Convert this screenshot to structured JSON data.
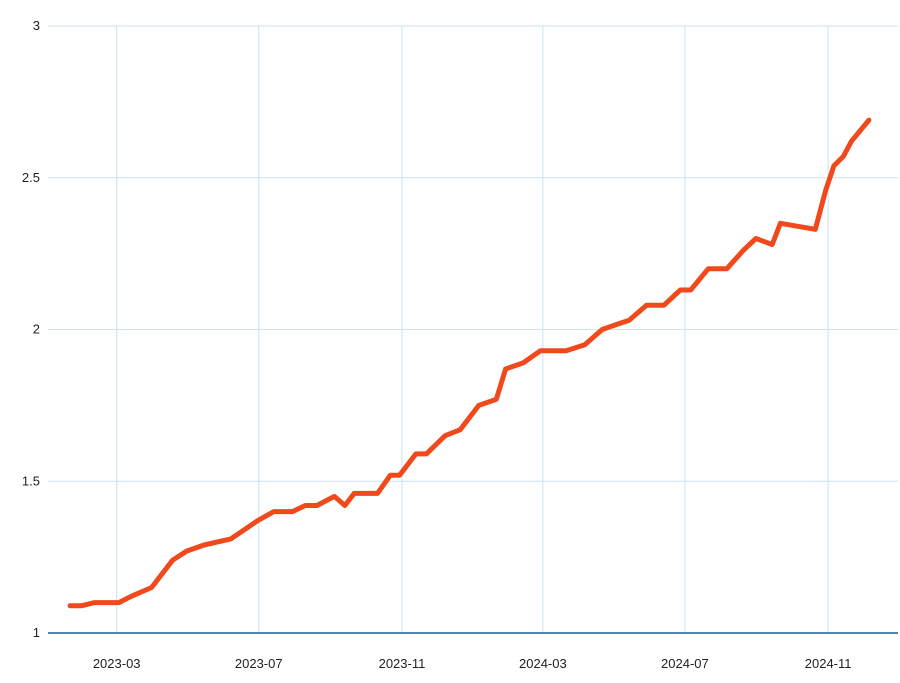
{
  "chart_data": {
    "type": "line",
    "title": "",
    "xlabel": "",
    "ylabel": "",
    "x_ticks": [
      "2023-03",
      "2023-07",
      "2023-11",
      "2024-03",
      "2024-07",
      "2024-11"
    ],
    "y_ticks": [
      "1",
      "1.5",
      "2",
      "2.5",
      "3"
    ],
    "ylim": [
      1,
      3
    ],
    "xlim": [
      "2023-01-01",
      "2024-12-31"
    ],
    "grid": true,
    "legend": "none",
    "colors": {
      "series": "#f04a1c",
      "grid": "#c9e3f2",
      "baseline": "#1f5b8c"
    },
    "series": [
      {
        "x": [
          "2023-01-20",
          "2023-01-30",
          "2023-02-10",
          "2023-02-20",
          "2023-03-03",
          "2023-03-13",
          "2023-03-31",
          "2023-04-18",
          "2023-04-30",
          "2023-05-15",
          "2023-06-07",
          "2023-06-30",
          "2023-07-14",
          "2023-07-30",
          "2023-08-10",
          "2023-08-20",
          "2023-09-04",
          "2023-09-13",
          "2023-09-21",
          "2023-10-11",
          "2023-10-22",
          "2023-10-30",
          "2023-11-13",
          "2023-11-22",
          "2023-12-08",
          "2023-12-21",
          "2024-01-06",
          "2024-01-21",
          "2024-01-29",
          "2024-02-13",
          "2024-02-28",
          "2024-03-08",
          "2024-03-21",
          "2024-04-06",
          "2024-04-21",
          "2024-05-06",
          "2024-05-14",
          "2024-05-29",
          "2024-06-13",
          "2024-06-27",
          "2024-07-06",
          "2024-07-21",
          "2024-07-30",
          "2024-08-06",
          "2024-08-20",
          "2024-08-31",
          "2024-09-14",
          "2024-09-21",
          "2024-10-21",
          "2024-10-30",
          "2024-11-06",
          "2024-11-14",
          "2024-11-21",
          "2024-12-06"
        ],
        "values": [
          1.09,
          1.09,
          1.1,
          1.1,
          1.1,
          1.12,
          1.15,
          1.24,
          1.27,
          1.29,
          1.31,
          1.37,
          1.4,
          1.4,
          1.42,
          1.42,
          1.45,
          1.42,
          1.46,
          1.46,
          1.52,
          1.52,
          1.59,
          1.59,
          1.65,
          1.67,
          1.75,
          1.77,
          1.87,
          1.89,
          1.93,
          1.93,
          1.93,
          1.95,
          2.0,
          2.02,
          2.03,
          2.08,
          2.08,
          2.13,
          2.13,
          2.2,
          2.2,
          2.2,
          2.26,
          2.3,
          2.28,
          2.35,
          2.33,
          2.46,
          2.54,
          2.57,
          2.62,
          2.69
        ]
      }
    ]
  }
}
